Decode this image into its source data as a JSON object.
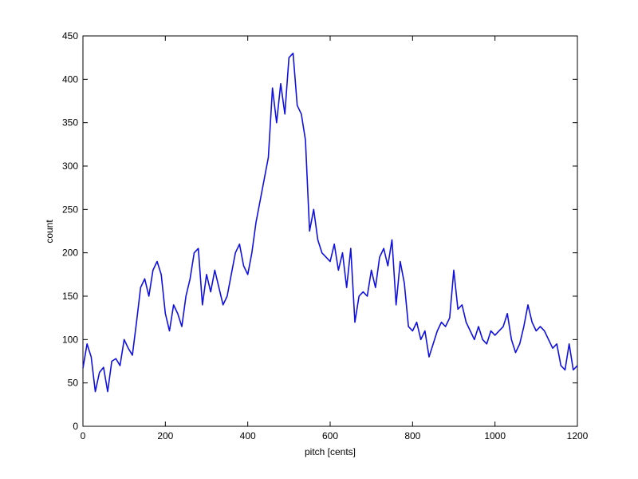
{
  "chart_data": {
    "type": "line",
    "xlabel": "pitch [cents]",
    "ylabel": "count",
    "x": [
      0,
      10,
      20,
      30,
      40,
      50,
      60,
      70,
      80,
      90,
      100,
      110,
      120,
      130,
      140,
      150,
      160,
      170,
      180,
      190,
      200,
      210,
      220,
      230,
      240,
      250,
      260,
      270,
      280,
      290,
      300,
      310,
      320,
      330,
      340,
      350,
      360,
      370,
      380,
      390,
      400,
      410,
      420,
      430,
      440,
      450,
      460,
      470,
      480,
      490,
      500,
      510,
      520,
      530,
      540,
      550,
      560,
      570,
      580,
      590,
      600,
      610,
      620,
      630,
      640,
      650,
      660,
      670,
      680,
      690,
      700,
      710,
      720,
      730,
      740,
      750,
      760,
      770,
      780,
      790,
      800,
      810,
      820,
      830,
      840,
      850,
      860,
      870,
      880,
      890,
      900,
      910,
      920,
      930,
      940,
      950,
      960,
      970,
      980,
      990,
      1000,
      1010,
      1020,
      1030,
      1040,
      1050,
      1060,
      1070,
      1080,
      1090,
      1100,
      1110,
      1120,
      1130,
      1140,
      1150,
      1160,
      1170,
      1180,
      1190,
      1200
    ],
    "series": [
      {
        "color": "#1010e0",
        "values": [
          67,
          95,
          80,
          40,
          62,
          68,
          40,
          75,
          78,
          70,
          100,
          90,
          82,
          120,
          160,
          170,
          150,
          180,
          190,
          175,
          130,
          110,
          140,
          130,
          115,
          150,
          170,
          200,
          205,
          140,
          175,
          155,
          180,
          160,
          140,
          150,
          175,
          200,
          210,
          185,
          175,
          200,
          235,
          260,
          285,
          310,
          390,
          350,
          395,
          360,
          425,
          430,
          370,
          360,
          330,
          225,
          250,
          215,
          200,
          195,
          190,
          210,
          180,
          200,
          160,
          205,
          120,
          150,
          155,
          150,
          180,
          160,
          195,
          205,
          185,
          215,
          140,
          190,
          165,
          115,
          110,
          120,
          100,
          110,
          80,
          95,
          110,
          120,
          115,
          125,
          180,
          135,
          140,
          120,
          110,
          100,
          115,
          100,
          95,
          110,
          105,
          110,
          115,
          130,
          100,
          85,
          95,
          115,
          140,
          120,
          110,
          115,
          110,
          100,
          90,
          95,
          70,
          65,
          95,
          65,
          70
        ]
      }
    ],
    "xlim": [
      0,
      1200
    ],
    "xticks": [
      0,
      200,
      400,
      600,
      800,
      1000,
      1200
    ],
    "ylim": [
      0,
      450
    ],
    "yticks": [
      0,
      50,
      100,
      150,
      200,
      250,
      300,
      350,
      400,
      450
    ],
    "grid": false
  }
}
